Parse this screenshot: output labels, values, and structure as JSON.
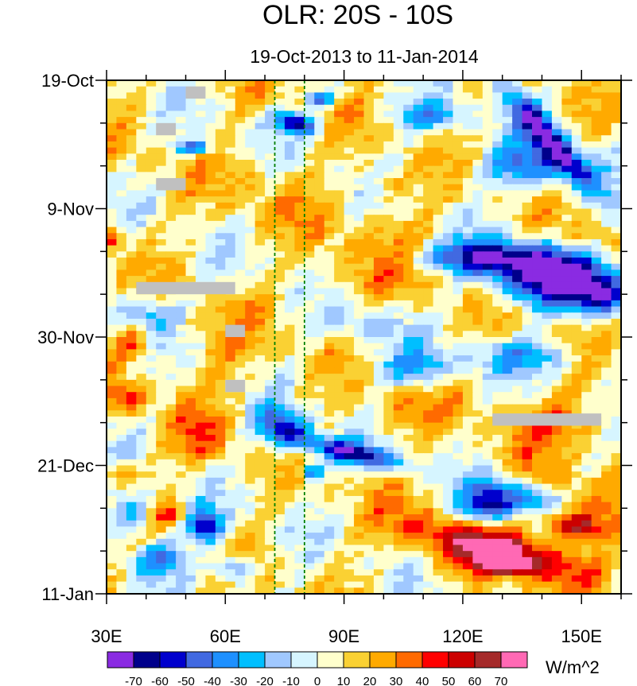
{
  "chart_data": {
    "type": "heatmap",
    "title": "OLR: 20S - 10S",
    "subtitle": "19-Oct-2013 to 11-Jan-2014",
    "x_range": [
      30,
      160
    ],
    "x_ticks": [
      {
        "value": 30,
        "label": "30E"
      },
      {
        "value": 60,
        "label": "60E"
      },
      {
        "value": 90,
        "label": "90E"
      },
      {
        "value": 120,
        "label": "120E"
      },
      {
        "value": 150,
        "label": "150E"
      }
    ],
    "y_range_days": [
      0,
      84
    ],
    "y_ticks": [
      {
        "day": 0,
        "label": "19-Oct"
      },
      {
        "day": 21,
        "label": "9-Nov"
      },
      {
        "day": 42,
        "label": "30-Nov"
      },
      {
        "day": 63,
        "label": "21-Dec"
      },
      {
        "day": 84,
        "label": "11-Jan"
      }
    ],
    "reference_lines_x": [
      72.5,
      80
    ],
    "colorbar": {
      "units": "W/m^2",
      "levels": [
        -70,
        -60,
        -50,
        -40,
        -30,
        -20,
        -10,
        0,
        10,
        20,
        30,
        40,
        50,
        60,
        70
      ],
      "colors": [
        "#8a2be2",
        "#00008b",
        "#0000cd",
        "#4169e1",
        "#1e90ff",
        "#00bfff",
        "#a0c8ff",
        "#d6f5ff",
        "#ffffcc",
        "#fad133",
        "#ffaa00",
        "#ff6a00",
        "#ff0000",
        "#cc0000",
        "#a52a2a",
        "#ff69b4"
      ]
    },
    "missing_color": "#c0c0c0",
    "anomaly_features": [
      {
        "lon": 141,
        "day": 9,
        "value": -65,
        "lon_radius": 22,
        "day_radius": 2.6,
        "angle": -50
      },
      {
        "lon": 137,
        "day": 14,
        "value": -42,
        "lon_radius": 14,
        "day_radius": 4.5,
        "angle": 0
      },
      {
        "lon": 128,
        "day": 29,
        "value": -68,
        "lon_radius": 22,
        "day_radius": 3.2,
        "angle": 0
      },
      {
        "lon": 142,
        "day": 33,
        "value": -70,
        "lon_radius": 16,
        "day_radius": 4.5,
        "angle": 0
      },
      {
        "lon": 155,
        "day": 35,
        "value": -55,
        "lon_radius": 8,
        "day_radius": 4,
        "angle": 0
      },
      {
        "lon": 135,
        "day": 45,
        "value": -28,
        "lon_radius": 16,
        "day_radius": 3,
        "angle": 0
      },
      {
        "lon": 108,
        "day": 47,
        "value": -32,
        "lon_radius": 11,
        "day_radius": 3.5,
        "angle": 0
      },
      {
        "lon": 75,
        "day": 57,
        "value": -62,
        "lon_radius": 8,
        "day_radius": 3.5,
        "angle": -20
      },
      {
        "lon": 92,
        "day": 61,
        "value": -66,
        "lon_radius": 14,
        "day_radius": 2,
        "angle": -12
      },
      {
        "lon": 82,
        "day": 64,
        "value": -55,
        "lon_radius": 3,
        "day_radius": 1.4,
        "angle": 0
      },
      {
        "lon": 127,
        "day": 69,
        "value": -70,
        "lon_radius": 9,
        "day_radius": 4,
        "angle": 30
      },
      {
        "lon": 140,
        "day": 68,
        "value": -42,
        "lon_radius": 8,
        "day_radius": 3,
        "angle": 0
      },
      {
        "lon": 55,
        "day": 73,
        "value": -62,
        "lon_radius": 5,
        "day_radius": 3.2,
        "angle": 0
      },
      {
        "lon": 36,
        "day": 71,
        "value": -38,
        "lon_radius": 7,
        "day_radius": 4,
        "angle": 0
      },
      {
        "lon": 43,
        "day": 78,
        "value": -40,
        "lon_radius": 8,
        "day_radius": 3,
        "angle": 0
      },
      {
        "lon": 62,
        "day": 80,
        "value": -42,
        "lon_radius": 6,
        "day_radius": 2.5,
        "angle": 0
      },
      {
        "lon": 78,
        "day": 7,
        "value": -62,
        "lon_radius": 6,
        "day_radius": 1.8,
        "angle": -15
      },
      {
        "lon": 84,
        "day": 3,
        "value": -50,
        "lon_radius": 4,
        "day_radius": 1.3,
        "angle": 0
      },
      {
        "lon": 52,
        "day": 11,
        "value": -50,
        "lon_radius": 5,
        "day_radius": 1.3,
        "angle": 0
      },
      {
        "lon": 112,
        "day": 6,
        "value": -32,
        "lon_radius": 10,
        "day_radius": 2.5,
        "angle": 0
      },
      {
        "lon": 40,
        "day": 38,
        "value": -30,
        "lon_radius": 9,
        "day_radius": 3,
        "angle": 0
      },
      {
        "lon": 95,
        "day": 40,
        "value": -18,
        "lon_radius": 12,
        "day_radius": 4,
        "angle": 0
      },
      {
        "lon": 130,
        "day": 79,
        "value": 72,
        "lon_radius": 7,
        "day_radius": 1.6,
        "angle": -8
      },
      {
        "lon": 133,
        "day": 77,
        "value": 52,
        "lon_radius": 22,
        "day_radius": 3.8,
        "angle": -15
      },
      {
        "lon": 148,
        "day": 73,
        "value": 58,
        "lon_radius": 9,
        "day_radius": 2.5,
        "angle": -10
      },
      {
        "lon": 145,
        "day": 68,
        "value": 38,
        "lon_radius": 16,
        "day_radius": 4,
        "angle": -25
      },
      {
        "lon": 120,
        "day": 76,
        "value": 30,
        "lon_radius": 22,
        "day_radius": 5,
        "angle": -20
      },
      {
        "lon": 145,
        "day": 56,
        "value": 28,
        "lon_radius": 16,
        "day_radius": 5,
        "angle": 0
      },
      {
        "lon": 32,
        "day": 26,
        "value": 48,
        "lon_radius": 2.5,
        "day_radius": 2.2,
        "angle": 0
      },
      {
        "lon": 36,
        "day": 43,
        "value": 32,
        "lon_radius": 5,
        "day_radius": 3.5,
        "angle": 0
      },
      {
        "lon": 35,
        "day": 52,
        "value": 35,
        "lon_radius": 6,
        "day_radius": 3,
        "angle": 0
      },
      {
        "lon": 54,
        "day": 59,
        "value": 28,
        "lon_radius": 8,
        "day_radius": 5,
        "angle": 0
      },
      {
        "lon": 34,
        "day": 64,
        "value": 38,
        "lon_radius": 4,
        "day_radius": 2,
        "angle": 0
      },
      {
        "lon": 46,
        "day": 71,
        "value": 35,
        "lon_radius": 4,
        "day_radius": 2,
        "angle": 0
      },
      {
        "lon": 100,
        "day": 30,
        "value": 22,
        "lon_radius": 18,
        "day_radius": 10,
        "angle": 0
      },
      {
        "lon": 105,
        "day": 54,
        "value": 18,
        "lon_radius": 14,
        "day_radius": 5,
        "angle": 0
      },
      {
        "lon": 70,
        "day": 18,
        "value": 15,
        "lon_radius": 15,
        "day_radius": 6,
        "angle": -20
      },
      {
        "lon": 102,
        "day": 17,
        "value": 25,
        "lon_radius": 5,
        "day_radius": 2,
        "angle": 0
      },
      {
        "lon": 150,
        "day": 26,
        "value": 20,
        "lon_radius": 8,
        "day_radius": 3,
        "angle": 0
      },
      {
        "lon": 60,
        "day": 45,
        "value": 18,
        "lon_radius": 12,
        "day_radius": 8,
        "angle": 0
      }
    ],
    "missing_regions": [
      {
        "lon_min": 50,
        "lon_max": 55,
        "day_min": 1,
        "day_max": 3
      },
      {
        "lon_min": 42.5,
        "lon_max": 47.5,
        "day_min": 7,
        "day_max": 9
      },
      {
        "lon_min": 42.5,
        "lon_max": 50,
        "day_min": 16,
        "day_max": 18
      },
      {
        "lon_min": 37.5,
        "lon_max": 62.5,
        "day_min": 33,
        "day_max": 35
      },
      {
        "lon_min": 60,
        "lon_max": 65,
        "day_min": 40,
        "day_max": 42
      },
      {
        "lon_min": 60,
        "lon_max": 65,
        "day_min": 49,
        "day_max": 51
      },
      {
        "lon_min": 127.5,
        "lon_max": 155,
        "day_min": 54.5,
        "day_max": 56.5
      }
    ]
  }
}
